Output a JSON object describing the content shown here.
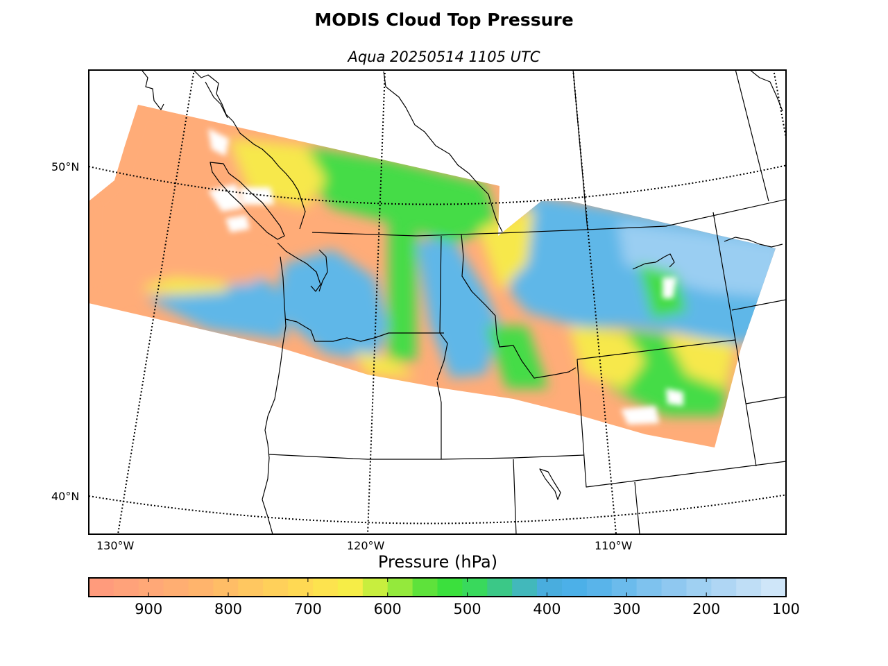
{
  "header": {
    "title": "MODIS Cloud Top Pressure",
    "subtitle": "Aqua 20250514 1105 UTC"
  },
  "map": {
    "lat_labels": [
      "50°N",
      "40°N"
    ],
    "lon_labels": [
      "130°W",
      "120°W",
      "110°W"
    ]
  },
  "colorbar": {
    "title": "Pressure (hPa)",
    "range": [
      100,
      975
    ],
    "ticks": [
      "900",
      "800",
      "700",
      "600",
      "500",
      "400",
      "300",
      "200",
      "100"
    ],
    "colors": [
      "#ff9b7c",
      "#ffa27a",
      "#ffa877",
      "#ffae72",
      "#ffb46c",
      "#ffbd66",
      "#ffc760",
      "#ffd05a",
      "#ffd953",
      "#fde34e",
      "#f6ed47",
      "#c8ee3e",
      "#94e93c",
      "#5ee23b",
      "#3be03d",
      "#39d95c",
      "#3bc887",
      "#42b8bb",
      "#49adde",
      "#4cb0e8",
      "#59b4ea",
      "#6bbbec",
      "#7ec2ee",
      "#8fc8f0",
      "#9fd0f2",
      "#afd6f4",
      "#bfdef6",
      "#cfe6f9"
    ]
  },
  "imagery_palette": {
    "low": "#ffac78",
    "low_mid": "#ffc466",
    "mid_yellow": "#f7e84c",
    "mid_green": "#44dc47",
    "high_blue": "#5eb7e8",
    "very_high": "#9acef2",
    "missing": "#ffffff"
  }
}
